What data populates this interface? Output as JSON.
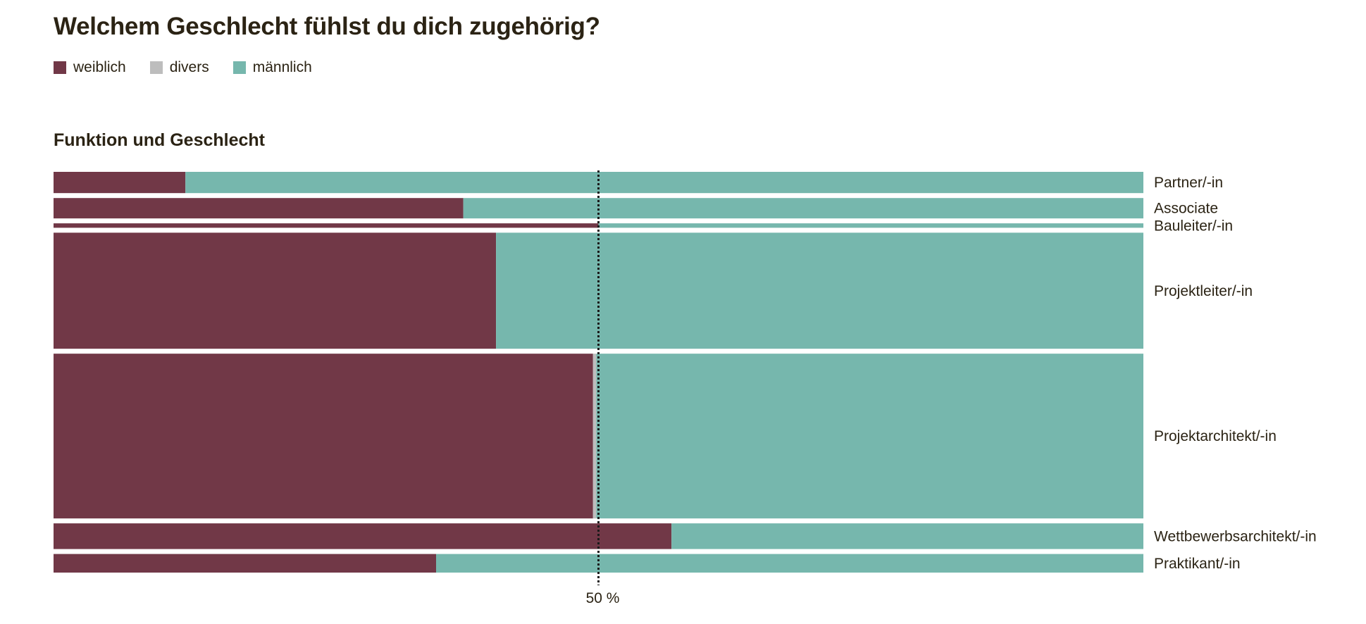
{
  "title": "Welchem Geschlecht fühlst du dich zugehörig?",
  "colors": {
    "weiblich": "#713847",
    "divers": "#bdbdbd",
    "maennlich": "#76b7ad",
    "reference_line": "#1a1a1a"
  },
  "legend": [
    {
      "label": "weiblich",
      "color": "#713847"
    },
    {
      "label": "divers",
      "color": "#bdbdbd"
    },
    {
      "label": "männlich",
      "color": "#76b7ad"
    }
  ],
  "chart_data": {
    "type": "bar",
    "subtitle": "Funktion und Geschlecht",
    "orientation": "horizontal-stacked-100-percent (mosaic: row height ~ share of respondents)",
    "series_order": [
      "weiblich",
      "divers",
      "männlich"
    ],
    "categories": [
      "Partner/-in",
      "Associate",
      "Bauleiter/-in",
      "Projektleiter/-in",
      "Projektarchitekt/-in",
      "Wettbewerbsarchitekt/-in",
      "Praktikant/-in"
    ],
    "series": [
      {
        "name": "weiblich",
        "values": [
          12.1,
          37.6,
          50.0,
          40.6,
          49.5,
          56.7,
          35.1
        ]
      },
      {
        "name": "divers",
        "values": [
          0,
          0,
          0,
          0,
          0.3,
          0,
          0
        ]
      },
      {
        "name": "männlich",
        "values": [
          87.9,
          62.4,
          50.0,
          59.4,
          50.2,
          43.3,
          64.9
        ]
      }
    ],
    "row_weights": [
      24,
      23,
      5,
      131,
      186,
      29,
      21
    ],
    "reference_line": {
      "value": 50,
      "label": "50 %"
    },
    "xlim": [
      0,
      100
    ]
  }
}
